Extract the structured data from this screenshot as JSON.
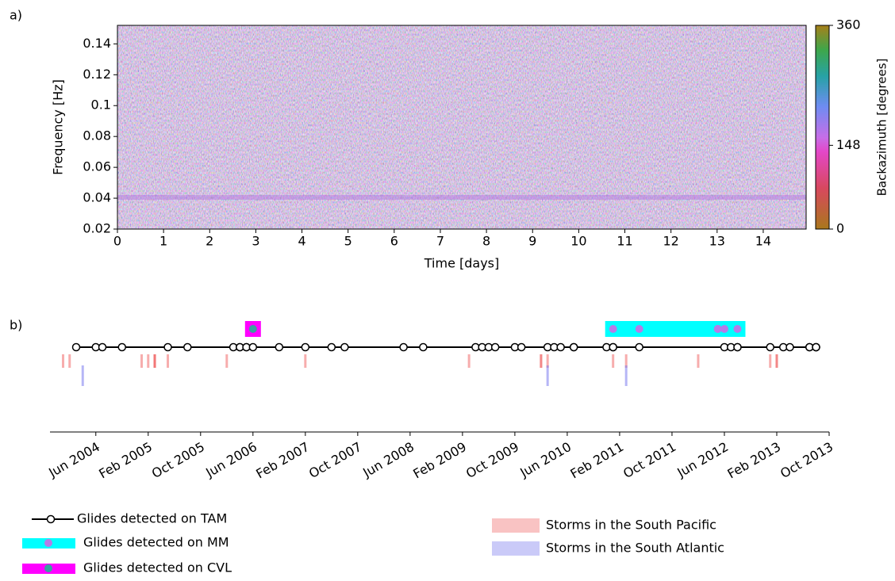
{
  "chart_data": [
    {
      "type": "spectrogram",
      "panel_label": "a)",
      "xlabel": "Time [days]",
      "ylabel": "Frequency [Hz]",
      "xlim": [
        0,
        14.93
      ],
      "xticks": [
        0,
        1,
        2,
        3,
        4,
        5,
        6,
        7,
        8,
        9,
        10,
        11,
        12,
        13,
        14
      ],
      "ylim": [
        0.02,
        0.152
      ],
      "yticks": [
        0.02,
        0.04,
        0.06,
        0.08,
        0.1,
        0.12,
        0.14
      ],
      "colorbar": {
        "label": "Backazimuth [degrees]",
        "lim": [
          0,
          360
        ],
        "ticks": [
          0,
          148,
          360
        ]
      }
    },
    {
      "type": "timeline",
      "panel_label": "b)",
      "xlim": [
        "2003-11",
        "2013-10"
      ],
      "xticks": [
        {
          "value": "2004-06",
          "label": "Jun 2004"
        },
        {
          "value": "2005-02",
          "label": "Feb 2005"
        },
        {
          "value": "2005-10",
          "label": "Oct 2005"
        },
        {
          "value": "2006-06",
          "label": "Jun 2006"
        },
        {
          "value": "2007-02",
          "label": "Feb 2007"
        },
        {
          "value": "2007-10",
          "label": "Oct 2007"
        },
        {
          "value": "2008-06",
          "label": "Jun 2008"
        },
        {
          "value": "2009-02",
          "label": "Feb 2009"
        },
        {
          "value": "2009-10",
          "label": "Oct 2009"
        },
        {
          "value": "2010-06",
          "label": "Jun 2010"
        },
        {
          "value": "2011-02",
          "label": "Feb 2011"
        },
        {
          "value": "2011-10",
          "label": "Oct 2011"
        },
        {
          "value": "2012-06",
          "label": "Jun 2012"
        },
        {
          "value": "2013-02",
          "label": "Feb 2013"
        },
        {
          "value": "2013-10",
          "label": "Oct 2013"
        }
      ],
      "series": [
        {
          "name": "Glides detected on TAM",
          "kind": "line",
          "color": "#000000",
          "x": [
            "2004-03",
            "2004-06",
            "2004-07",
            "2004-10",
            "2005-05",
            "2005-08",
            "2006-03",
            "2006-04",
            "2006-04",
            "2006-05",
            "2006-05",
            "2006-06",
            "2006-10",
            "2007-02",
            "2007-06",
            "2007-08",
            "2008-05",
            "2008-08",
            "2009-04",
            "2009-05",
            "2009-06",
            "2009-07",
            "2009-10",
            "2009-11",
            "2010-03",
            "2010-04",
            "2010-05",
            "2010-07",
            "2010-07",
            "2010-12",
            "2011-01",
            "2011-01",
            "2011-05",
            "2012-06",
            "2012-07",
            "2012-08",
            "2012-08",
            "2013-01",
            "2013-03",
            "2013-04",
            "2013-07",
            "2013-07",
            "2013-08",
            "2013-08",
            "2013-08"
          ]
        },
        {
          "name": "Glides detected on MM",
          "kind": "box",
          "color": "#00ffff",
          "marker_color": "#b57ce8",
          "x": [
            "2011-01",
            "2011-05",
            "2012-05",
            "2012-05",
            "2012-06",
            "2012-08"
          ]
        },
        {
          "name": "Glides detected on CVL",
          "kind": "box",
          "color": "#ff00ff",
          "marker_color": "#3a9fa0",
          "x": [
            "2006-06"
          ]
        },
        {
          "name": "Storms in the South Pacific",
          "kind": "storm",
          "color": "#f06a6a",
          "x": [
            "2004-01",
            "2004-02",
            "2005-01",
            "2005-02",
            "2005-03",
            "2005-03",
            "2005-03",
            "2005-05",
            "2006-02",
            "2007-02",
            "2009-03",
            "2010-02",
            "2010-02",
            "2010-03",
            "2011-01",
            "2011-03",
            "2012-02",
            "2013-01",
            "2013-02",
            "2013-02"
          ]
        },
        {
          "name": "Storms in the South Atlantic",
          "kind": "storm",
          "color": "#7a7aee",
          "x": [
            "2004-04",
            "2010-03",
            "2011-03"
          ]
        }
      ]
    }
  ]
}
